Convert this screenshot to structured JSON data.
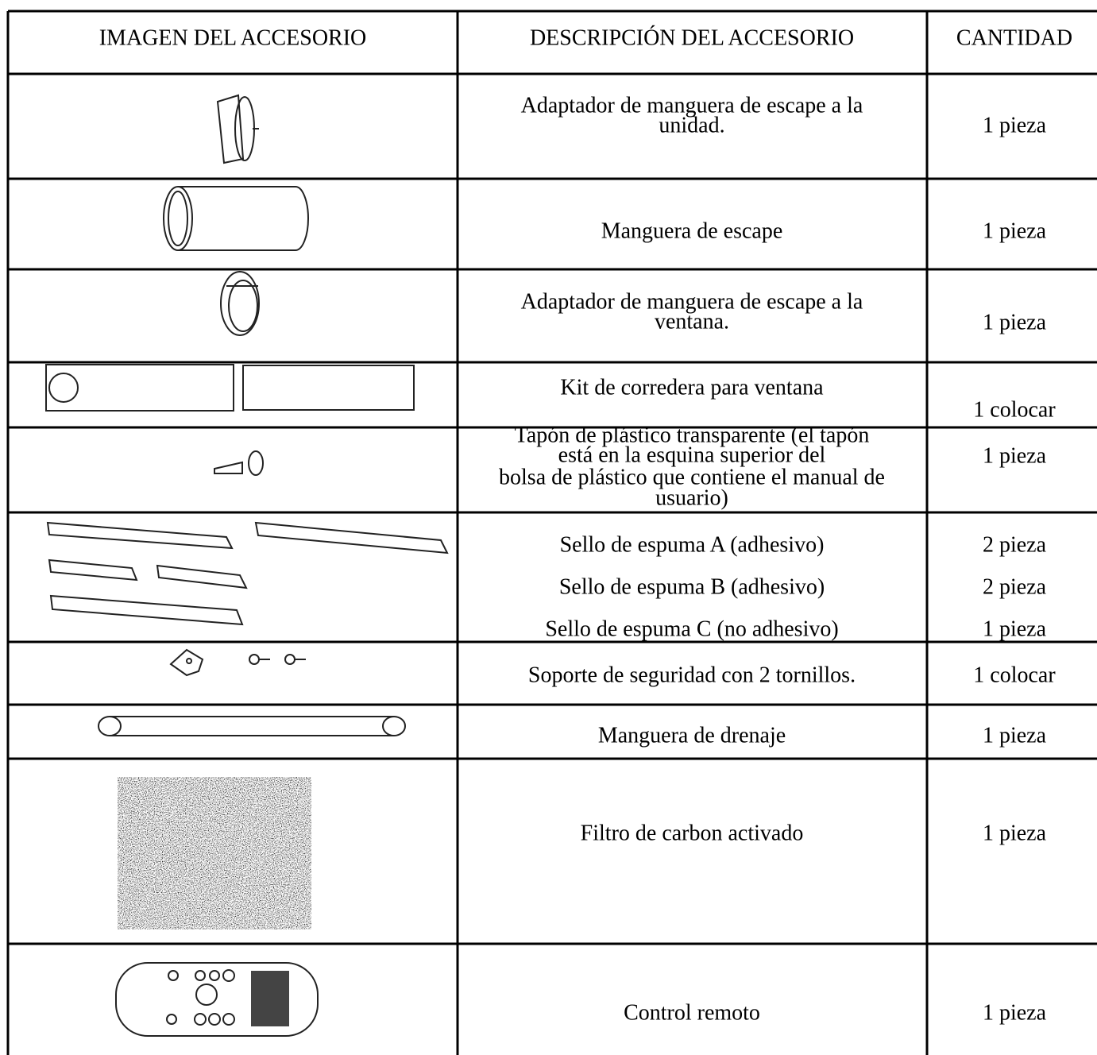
{
  "table": {
    "header": [
      "IMAGEN DEL ACCESORIO",
      "DESCRIPCIÓN DEL ACCESORIO",
      "CANTIDAD"
    ],
    "rows": [
      {
        "description": [
          "Adaptador de manguera de escape a la",
          "unidad."
        ],
        "quantity": [
          "1 pieza"
        ]
      },
      {
        "description": [
          "Manguera de escape"
        ],
        "quantity": [
          "1 pieza"
        ]
      },
      {
        "description": [
          "Adaptador de manguera de escape a la",
          "ventana."
        ],
        "quantity": [
          "1 pieza"
        ]
      },
      {
        "description": [
          "Kit de corredera para ventana"
        ],
        "quantity": [
          "1 colocar"
        ]
      },
      {
        "description": [
          "Tapón de plástico transparente (el tapón",
          "está en la esquina superior del",
          "bolsa de plástico que contiene el manual de",
          "usuario)"
        ],
        "quantity": [
          "1 pieza"
        ]
      },
      {
        "description": [
          "Sello de espuma A (adhesivo)",
          "Sello de espuma B (adhesivo)",
          "Sello de espuma C (no adhesivo)"
        ],
        "quantity": [
          "2 pieza",
          "2 pieza",
          "1 pieza"
        ]
      },
      {
        "description": [
          "Soporte de seguridad con 2 tornillos."
        ],
        "quantity": [
          "1 colocar"
        ]
      },
      {
        "description": [
          "Manguera de drenaje"
        ],
        "quantity": [
          "1 pieza"
        ]
      },
      {
        "description": [
          "Filtro de carbon activado"
        ],
        "quantity": [
          "1 pieza"
        ]
      },
      {
        "description": [
          "Control remoto"
        ],
        "quantity": [
          "1 pieza"
        ]
      }
    ]
  }
}
